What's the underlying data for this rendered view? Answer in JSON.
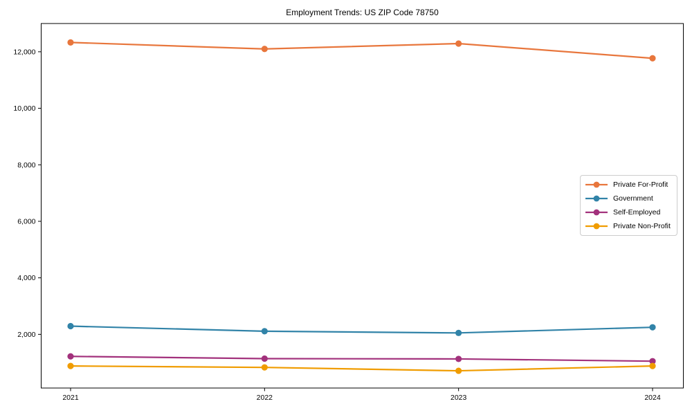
{
  "chart_data": {
    "type": "line",
    "title": "Employment Trends: US ZIP Code 78750",
    "xlabel": "",
    "ylabel": "",
    "categories": [
      "2021",
      "2022",
      "2023",
      "2024"
    ],
    "series": [
      {
        "name": "Private For-Profit",
        "color": "#e8763c",
        "values": [
          12330,
          12100,
          12290,
          11770
        ]
      },
      {
        "name": "Government",
        "color": "#3183a8",
        "values": [
          2290,
          2110,
          2050,
          2250
        ]
      },
      {
        "name": "Self-Employed",
        "color": "#a2317c",
        "values": [
          1220,
          1140,
          1130,
          1050
        ]
      },
      {
        "name": "Private Non-Profit",
        "color": "#f09c00",
        "values": [
          880,
          830,
          710,
          880
        ]
      }
    ],
    "y_ticks": [
      2000,
      4000,
      6000,
      8000,
      10000,
      12000
    ],
    "ylim": [
      100,
      13000
    ],
    "grid": false,
    "legend_position": "center-right",
    "marker": "circle",
    "frame": "full-box"
  }
}
